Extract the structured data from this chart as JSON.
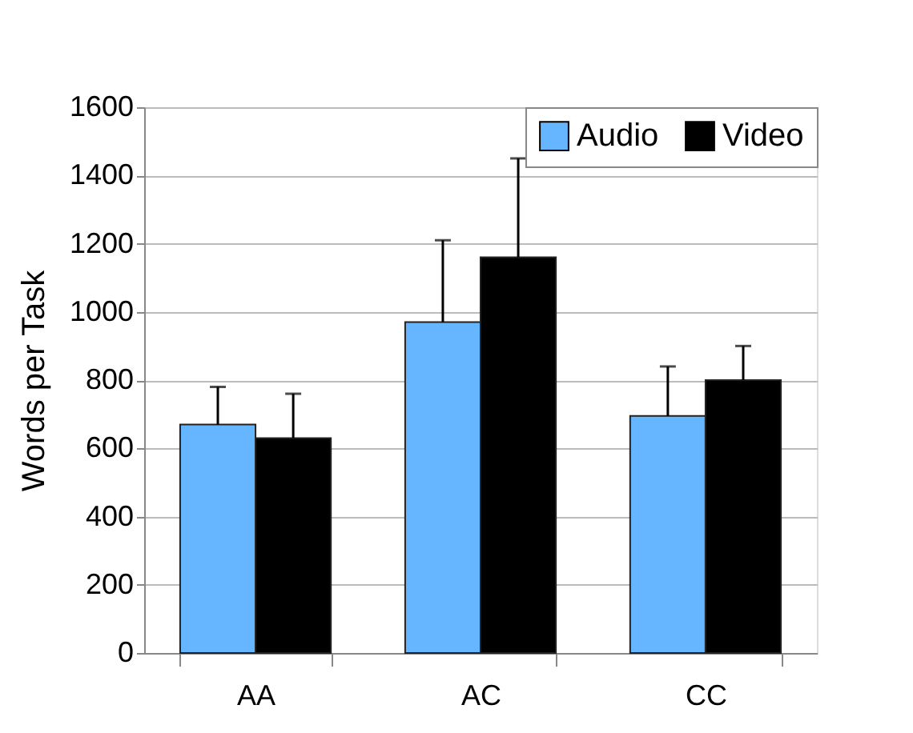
{
  "chart_data": {
    "type": "bar",
    "ylabel": "Words per Task",
    "categories": [
      "AA",
      "AC",
      "CC"
    ],
    "series": [
      {
        "name": "Audio",
        "color": "#66b5ff",
        "values": [
          670,
          970,
          695
        ],
        "errors": [
          [
            670,
            780
          ],
          [
            970,
            1210
          ],
          [
            695,
            840
          ]
        ]
      },
      {
        "name": "Video",
        "color": "#000000",
        "values": [
          630,
          1160,
          800
        ],
        "errors": [
          [
            630,
            760
          ],
          [
            1160,
            1450
          ],
          [
            800,
            900
          ]
        ]
      }
    ],
    "ylim": [
      0,
      1600
    ],
    "yticks": [
      0,
      200,
      400,
      600,
      800,
      1000,
      1200,
      1400,
      1600
    ],
    "grid": "y",
    "legend": "top right"
  }
}
